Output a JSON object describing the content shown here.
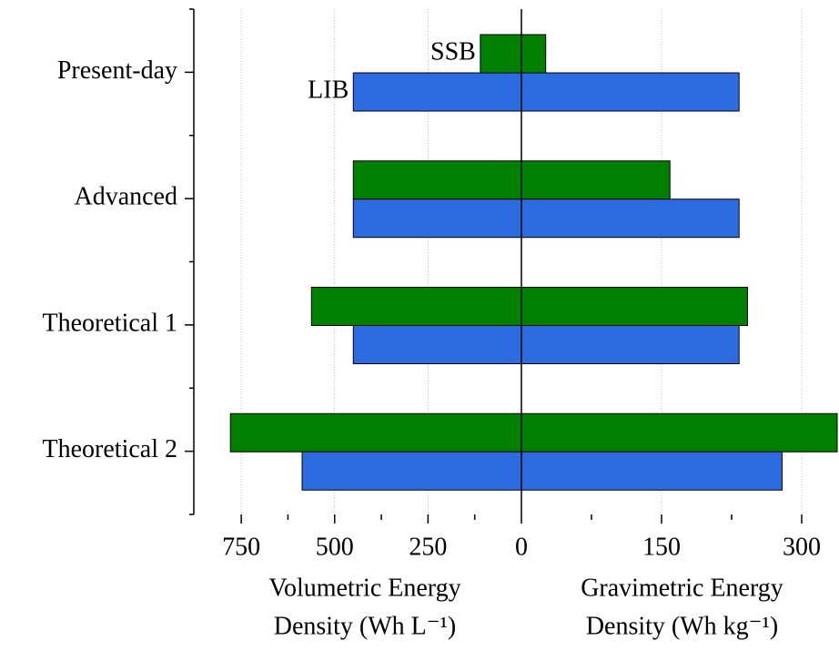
{
  "chart_data": [
    {
      "type": "bar",
      "orientation": "horizontal",
      "categories": [
        "Present-day",
        "Advanced",
        "Theoretical 1",
        "Theoretical 2"
      ],
      "series": [
        {
          "name": "SSB",
          "color": "#008000",
          "values": [
            110,
            450,
            562,
            779
          ]
        },
        {
          "name": "LIB",
          "color": "#2d6be0",
          "values": [
            450,
            450,
            450,
            587
          ]
        }
      ],
      "xlim": [
        877,
        0
      ],
      "xticks": [
        750,
        500,
        250,
        0
      ],
      "xminorticks": [
        625,
        375,
        125
      ],
      "xlabel": [
        "Volumetric Energy",
        "Density (Wh L⁻¹)"
      ],
      "grid": true
    },
    {
      "type": "bar",
      "orientation": "horizontal",
      "series": [
        {
          "color": "#008000",
          "values": [
            26,
            159,
            242,
            338
          ]
        },
        {
          "color": "#2d6be0",
          "values": [
            233,
            233,
            233,
            279
          ]
        }
      ],
      "xlim": [
        0,
        338
      ],
      "xticks": [
        150,
        300
      ],
      "xminorticks": [
        75,
        225
      ],
      "xlabel": [
        "Gravimetric Energy",
        "Density (Wh kg⁻¹)"
      ],
      "grid": true
    }
  ]
}
